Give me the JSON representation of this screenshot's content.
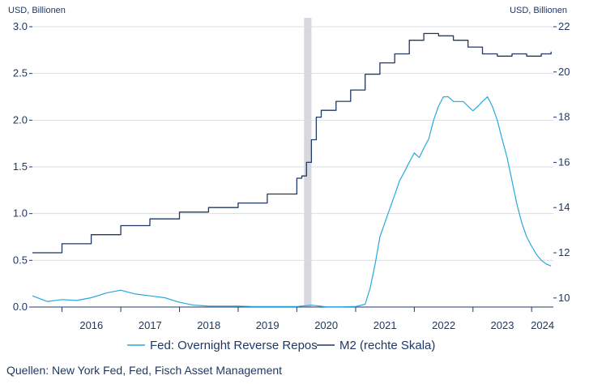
{
  "chart_data": {
    "type": "line",
    "title": "",
    "y_left_unit": "USD, Billionen",
    "y_right_unit": "USD, Billionen",
    "ylim_left": [
      0,
      3.0
    ],
    "ylim_right": [
      9.6,
      22.0
    ],
    "y_left_ticks": [
      "0.0",
      "0.5",
      "1.0",
      "1.5",
      "2.0",
      "2.5",
      "3.0"
    ],
    "y_right_ticks": [
      "10",
      "12",
      "14",
      "16",
      "18",
      "20",
      "22"
    ],
    "x_tick_labels": [
      "2016",
      "2017",
      "2018",
      "2019",
      "2020",
      "2021",
      "2022",
      "2023",
      "2024"
    ],
    "xlim": [
      "2015-07-01",
      "2024-05-15"
    ],
    "shaded_period": [
      "2020-02-15",
      "2020-04-01"
    ],
    "grid": "horizontal",
    "legend_position": "bottom",
    "series": [
      {
        "name": "Fed: Overnight Reverse Repos",
        "axis": "left",
        "color": "#29a8dd",
        "dates": [
          "2015-07",
          "2015-10",
          "2016-01",
          "2016-04",
          "2016-07",
          "2016-10",
          "2017-01",
          "2017-04",
          "2017-07",
          "2017-10",
          "2018-01",
          "2018-04",
          "2018-07",
          "2018-10",
          "2019-01",
          "2019-04",
          "2019-07",
          "2019-10",
          "2020-01",
          "2020-04",
          "2020-07",
          "2020-10",
          "2021-01",
          "2021-03",
          "2021-04",
          "2021-05",
          "2021-06",
          "2021-07",
          "2021-08",
          "2021-09",
          "2021-10",
          "2021-11",
          "2021-12",
          "2022-01",
          "2022-02",
          "2022-03",
          "2022-04",
          "2022-05",
          "2022-06",
          "2022-07",
          "2022-08",
          "2022-09",
          "2022-10",
          "2022-11",
          "2022-12",
          "2023-01",
          "2023-02",
          "2023-03",
          "2023-04",
          "2023-05",
          "2023-06",
          "2023-07",
          "2023-08",
          "2023-09",
          "2023-10",
          "2023-11",
          "2023-12",
          "2024-01",
          "2024-02",
          "2024-03",
          "2024-04",
          "2024-05"
        ],
        "values": [
          0.12,
          0.06,
          0.08,
          0.07,
          0.1,
          0.15,
          0.18,
          0.14,
          0.12,
          0.1,
          0.05,
          0.02,
          0.01,
          0.01,
          0.01,
          0.005,
          0.005,
          0.005,
          0.005,
          0.02,
          0.003,
          0.003,
          0.005,
          0.03,
          0.2,
          0.45,
          0.75,
          0.9,
          1.05,
          1.2,
          1.35,
          1.45,
          1.55,
          1.65,
          1.6,
          1.7,
          1.8,
          2.0,
          2.15,
          2.25,
          2.25,
          2.2,
          2.2,
          2.2,
          2.15,
          2.1,
          2.15,
          2.2,
          2.25,
          2.15,
          2.0,
          1.8,
          1.6,
          1.35,
          1.1,
          0.9,
          0.75,
          0.65,
          0.56,
          0.5,
          0.46,
          0.44
        ]
      },
      {
        "name": "M2 (rechte Skala)",
        "axis": "right",
        "color": "#1f3864",
        "dates": [
          "2015-07",
          "2016-01",
          "2016-07",
          "2017-01",
          "2017-07",
          "2018-01",
          "2018-07",
          "2019-01",
          "2019-07",
          "2020-01",
          "2020-02",
          "2020-03",
          "2020-04",
          "2020-05",
          "2020-06",
          "2020-09",
          "2020-12",
          "2021-03",
          "2021-06",
          "2021-09",
          "2021-12",
          "2022-03",
          "2022-06",
          "2022-09",
          "2022-12",
          "2023-03",
          "2023-06",
          "2023-09",
          "2023-12",
          "2024-03",
          "2024-05"
        ],
        "values": [
          12.0,
          12.4,
          12.8,
          13.2,
          13.5,
          13.8,
          14.0,
          14.2,
          14.6,
          15.3,
          15.4,
          16.0,
          17.0,
          18.0,
          18.3,
          18.7,
          19.2,
          19.9,
          20.4,
          20.8,
          21.4,
          21.7,
          21.6,
          21.4,
          21.1,
          20.8,
          20.7,
          20.8,
          20.7,
          20.8,
          20.9
        ]
      }
    ]
  },
  "source_text": "Quellen: New York Fed, Fed, Fisch Asset Management"
}
